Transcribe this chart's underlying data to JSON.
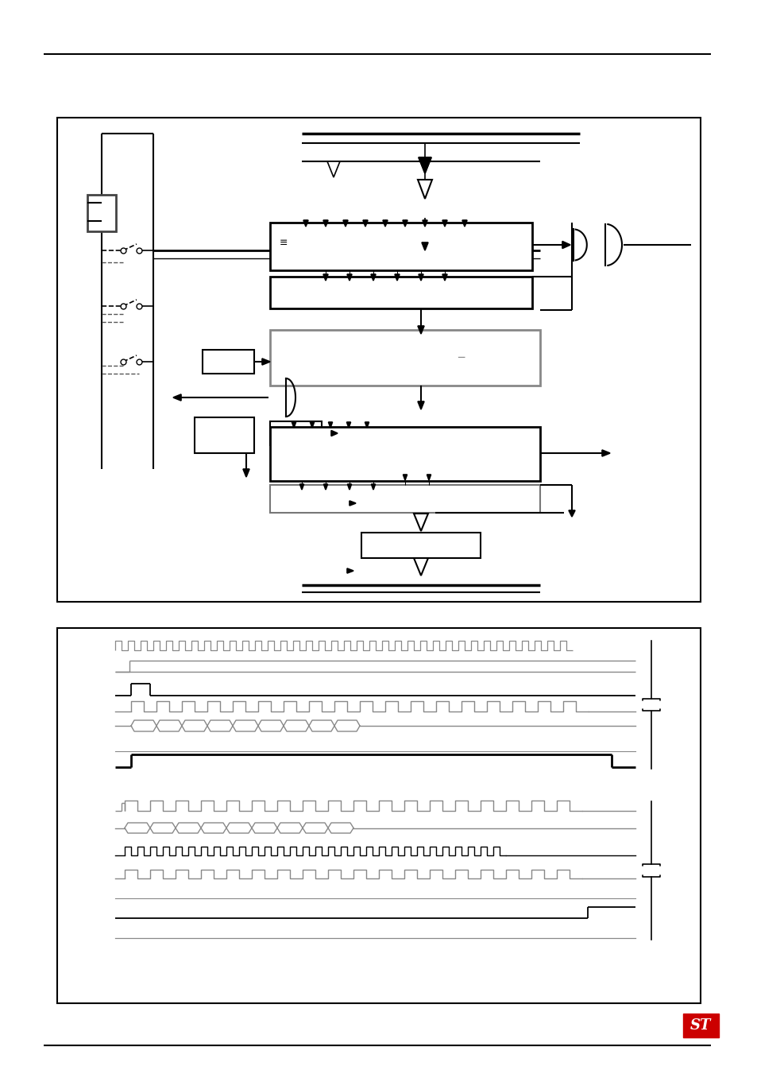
{
  "page_bg": "#ffffff",
  "lc": "#000000",
  "gc": "#777777",
  "fig_w": 9.54,
  "fig_h": 13.51
}
